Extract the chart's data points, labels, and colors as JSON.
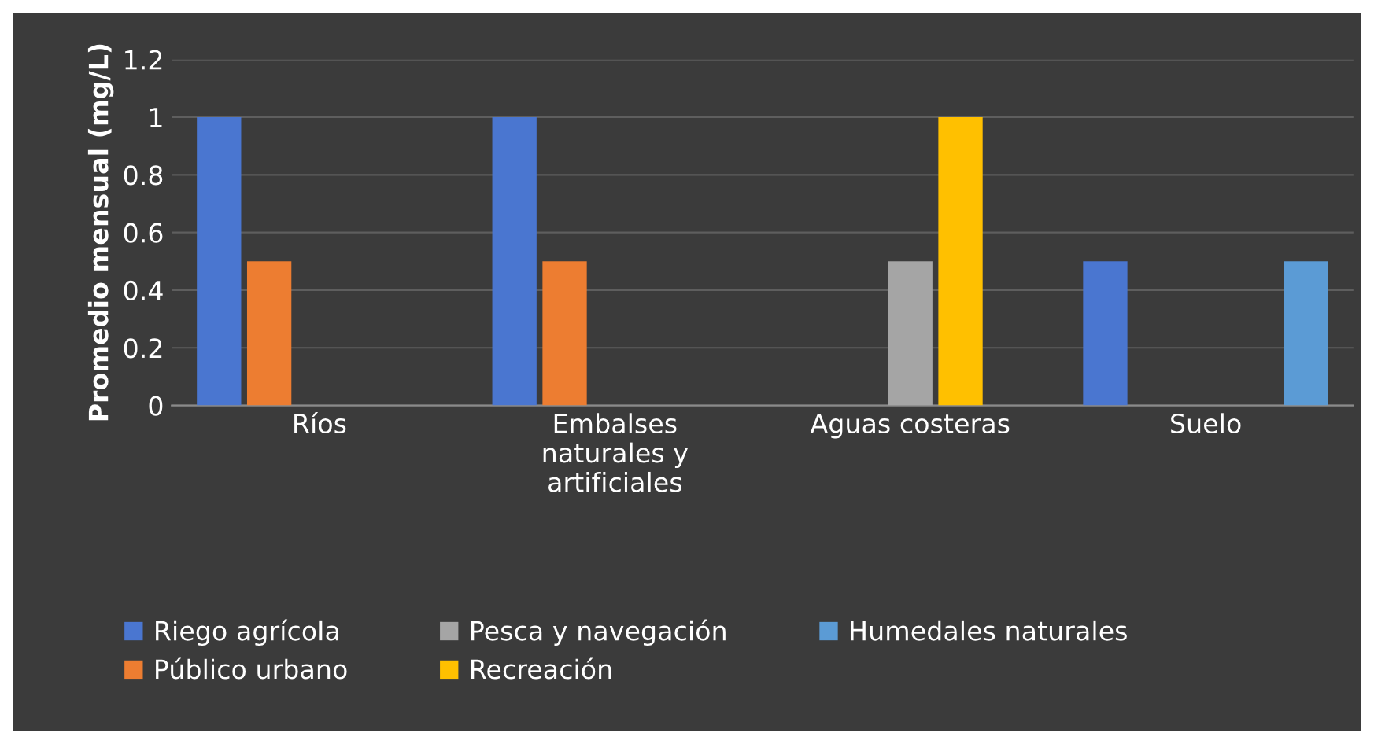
{
  "chart_data": {
    "type": "bar",
    "ylabel": "Promedio mensual (mg/L)",
    "categories": [
      "Ríos",
      "Embalses\nnaturales y\nartificiales",
      "Aguas costeras",
      "Suelo"
    ],
    "series": [
      {
        "name": "Riego agrícola",
        "color": "#4a76d0",
        "values": [
          1,
          1,
          0,
          0.5
        ]
      },
      {
        "name": "Público urbano",
        "color": "#ed7d31",
        "values": [
          0.5,
          0.5,
          0,
          0
        ]
      },
      {
        "name": "Pesca y navegación",
        "color": "#a5a5a5",
        "values": [
          0,
          0,
          0.5,
          0
        ]
      },
      {
        "name": "Recreación",
        "color": "#ffc000",
        "values": [
          0,
          0,
          1,
          0
        ]
      },
      {
        "name": "Humedales naturales",
        "color": "#5b9bd5",
        "values": [
          0,
          0,
          0,
          0.5
        ]
      }
    ],
    "ylim": [
      0,
      1.2
    ],
    "yticks": [
      0,
      0.2,
      0.4,
      0.6,
      0.8,
      1,
      1.2
    ],
    "grid": "y",
    "legend": "bottom"
  }
}
